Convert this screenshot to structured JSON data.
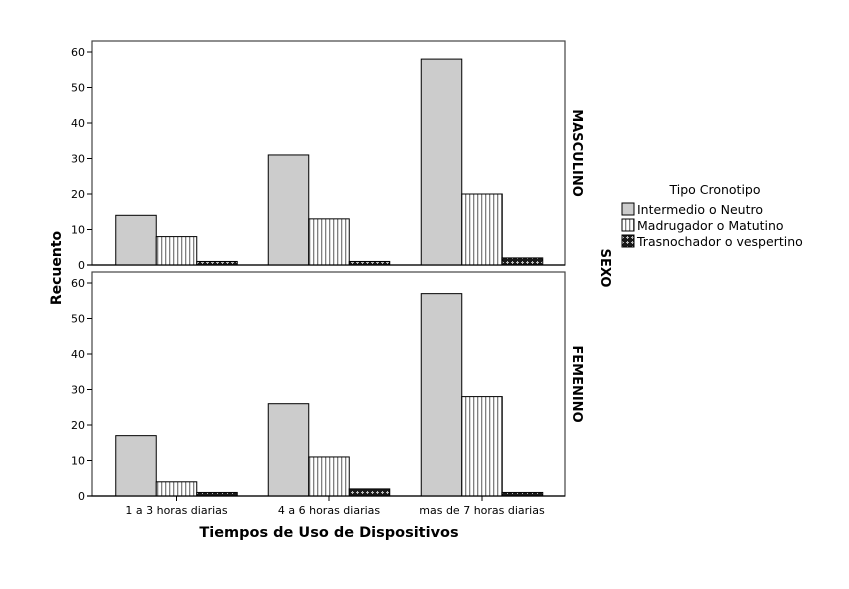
{
  "chart_data": {
    "type": "bar",
    "layout": "faceted-rows",
    "title": "",
    "xlabel": "Tiempos de Uso de Dispositivos",
    "ylabel": "Recuento",
    "facet_label": "SEXO",
    "categories": [
      "1 a 3 horas diarias",
      "4 a 6 horas diarias",
      "mas de 7 horas diarias"
    ],
    "ylim": [
      0,
      60
    ],
    "yticks": [
      0,
      10,
      20,
      30,
      40,
      50,
      60
    ],
    "legend": {
      "title": "Tipo Cronotipo",
      "position": "right",
      "entries": [
        "Intermedio o Neutro",
        "Madrugador o Matutino",
        "Trasnochador o vespertino"
      ]
    },
    "panels": [
      {
        "name": "MASCULINO",
        "series": [
          {
            "name": "Intermedio o Neutro",
            "values": [
              14,
              31,
              58
            ]
          },
          {
            "name": "Madrugador o Matutino",
            "values": [
              8,
              13,
              20
            ]
          },
          {
            "name": "Trasnochador o vespertino",
            "values": [
              1,
              1,
              2
            ]
          }
        ]
      },
      {
        "name": "FEMENINO",
        "series": [
          {
            "name": "Intermedio o Neutro",
            "values": [
              17,
              26,
              57
            ]
          },
          {
            "name": "Madrugador o Matutino",
            "values": [
              4,
              11,
              28
            ]
          },
          {
            "name": "Trasnochador o vespertino",
            "values": [
              1,
              2,
              1
            ]
          }
        ]
      }
    ],
    "colors": {
      "intermedio_fill": "#cccccc",
      "stroke": "#000000",
      "stripe": "#808080",
      "dark_pattern": "#1a1a1a"
    }
  }
}
